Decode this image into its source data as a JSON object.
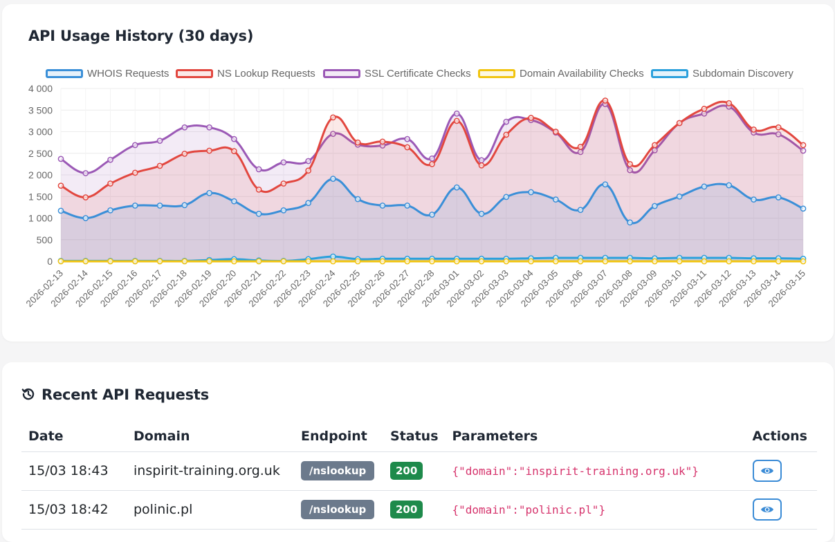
{
  "chart_card": {
    "title": "API Usage History (30 days)"
  },
  "chart_data": {
    "type": "line",
    "title": "API Usage History (30 days)",
    "ylim": [
      0,
      4000
    ],
    "yticks": [
      "4 000",
      "3 500",
      "3 000",
      "2 500",
      "2 000",
      "1 500",
      "1 000",
      "500",
      "0"
    ],
    "ytick_values": [
      4000,
      3500,
      3000,
      2500,
      2000,
      1500,
      1000,
      500,
      0
    ],
    "legend_position": "top",
    "categories": [
      "2026-02-13",
      "2026-02-14",
      "2026-02-15",
      "2026-02-16",
      "2026-02-17",
      "2026-02-18",
      "2026-02-19",
      "2026-02-20",
      "2026-02-21",
      "2026-02-22",
      "2026-02-23",
      "2026-02-24",
      "2026-02-25",
      "2026-02-26",
      "2026-02-27",
      "2026-02-28",
      "2026-03-01",
      "2026-03-02",
      "2026-03-03",
      "2026-03-04",
      "2026-03-05",
      "2026-03-06",
      "2026-03-07",
      "2026-03-08",
      "2026-03-09",
      "2026-03-10",
      "2026-03-11",
      "2026-03-12",
      "2026-03-13",
      "2026-03-14",
      "2026-03-15"
    ],
    "series": [
      {
        "name": "WHOIS Requests",
        "color": "#3a8fd8",
        "fill": "rgba(58,143,216,0.12)",
        "values": [
          1170,
          1000,
          1180,
          1290,
          1290,
          1300,
          1580,
          1390,
          1100,
          1180,
          1350,
          1910,
          1440,
          1290,
          1290,
          1080,
          1710,
          1100,
          1490,
          1600,
          1430,
          1190,
          1780,
          900,
          1280,
          1500,
          1730,
          1760,
          1430,
          1480,
          1220
        ]
      },
      {
        "name": "NS Lookup Requests",
        "color": "#e2473f",
        "fill": "rgba(226,71,63,0.12)",
        "values": [
          1750,
          1480,
          1800,
          2050,
          2210,
          2490,
          2560,
          2550,
          1660,
          1800,
          2100,
          3330,
          2750,
          2770,
          2640,
          2250,
          3250,
          2220,
          2930,
          3320,
          3000,
          2650,
          3720,
          2250,
          2690,
          3200,
          3530,
          3660,
          3050,
          3100,
          2690
        ]
      },
      {
        "name": "SSL Certificate Checks",
        "color": "#9b59b6",
        "fill": "rgba(155,89,182,0.12)",
        "values": [
          2370,
          2040,
          2350,
          2690,
          2790,
          3100,
          3100,
          2830,
          2130,
          2290,
          2320,
          2950,
          2700,
          2680,
          2830,
          2380,
          3420,
          2340,
          3230,
          3270,
          2980,
          2530,
          3640,
          2110,
          2570,
          3200,
          3420,
          3580,
          2980,
          2940,
          2560
        ]
      },
      {
        "name": "Domain Availability Checks",
        "color": "#f1c40f",
        "fill": "rgba(241,196,15,0.12)",
        "values": [
          0,
          0,
          0,
          0,
          0,
          0,
          0,
          0,
          0,
          0,
          0,
          0,
          0,
          0,
          0,
          0,
          0,
          0,
          0,
          0,
          0,
          0,
          0,
          0,
          0,
          0,
          0,
          0,
          0,
          0,
          0
        ]
      },
      {
        "name": "Subdomain Discovery",
        "color": "#2aa0dc",
        "fill": "rgba(42,160,220,0.12)",
        "values": [
          10,
          10,
          10,
          10,
          10,
          10,
          30,
          50,
          20,
          10,
          50,
          110,
          50,
          60,
          60,
          60,
          60,
          60,
          60,
          70,
          80,
          80,
          80,
          80,
          70,
          80,
          80,
          80,
          70,
          70,
          60
        ]
      }
    ]
  },
  "table_card": {
    "title": "Recent API Requests",
    "columns": [
      "Date",
      "Domain",
      "Endpoint",
      "Status",
      "Parameters",
      "Actions"
    ],
    "rows": [
      {
        "date": "15/03 18:43",
        "domain": "inspirit-training.org.uk",
        "endpoint": "/nslookup",
        "status": "200",
        "params": "{\"domain\":\"inspirit-training.org.uk\"}"
      },
      {
        "date": "15/03 18:42",
        "domain": "polinic.pl",
        "endpoint": "/nslookup",
        "status": "200",
        "params": "{\"domain\":\"polinic.pl\"}"
      }
    ]
  },
  "icons": {
    "history": "history-icon",
    "view": "eye-icon"
  }
}
